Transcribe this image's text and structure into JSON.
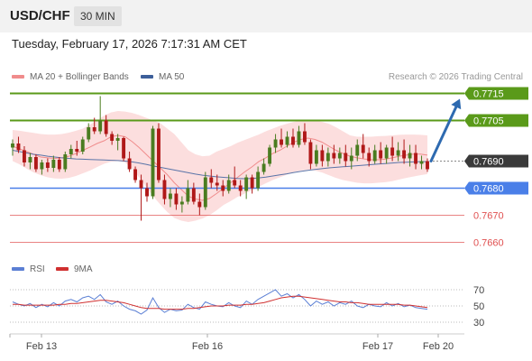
{
  "header": {
    "symbol": "USD/CHF",
    "timeframe": "30 MIN"
  },
  "datetime": "Tuesday, February 17, 2026 7:17:31 AM CET",
  "legend": [
    {
      "label": "MA 20 + Bollinger Bands",
      "color": "#f08c8c"
    },
    {
      "label": "MA 50",
      "color": "#3d5f9a"
    }
  ],
  "credit": "Research © 2026 Trading Central",
  "colors": {
    "green_level": "#5a9a1a",
    "blue_level": "#4a7fe8",
    "red_level": "#e05050",
    "current": "#3a3a3a",
    "arrow": "#2e6ab0",
    "rsi": "#5b7fd4",
    "ma9": "#d03030",
    "bull": "#4a7c20",
    "bear": "#b01818",
    "band": "#fbd8d8"
  },
  "chart_data": [
    {
      "type": "candlestick",
      "y_axis_side": "right",
      "ylim": [
        0.76555,
        0.77175
      ],
      "x_ticks": [
        "Feb 13",
        "Feb 16",
        "Feb 17",
        "Feb 20"
      ],
      "levels": [
        {
          "value": 0.7715,
          "label": "0.7715",
          "style": "green"
        },
        {
          "value": 0.7705,
          "label": "0.7705",
          "style": "green"
        },
        {
          "value": 0.769,
          "label": "0.7690",
          "style": "current"
        },
        {
          "value": 0.768,
          "label": "0.7680",
          "style": "blue"
        },
        {
          "value": 0.767,
          "label": "0.7670",
          "style": "red"
        },
        {
          "value": 0.766,
          "label": "0.7660",
          "style": "red"
        }
      ],
      "forecast_arrow": {
        "from": 0.769,
        "to": 0.7713
      },
      "bollinger": {
        "mid": [
          0.76955,
          0.76945,
          0.76935,
          0.76925,
          0.76915,
          0.76912,
          0.7691,
          0.76912,
          0.76918,
          0.76928,
          0.7694,
          0.76952,
          0.76965,
          0.76975,
          0.7699,
          0.76995,
          0.7699,
          0.76972,
          0.7695,
          0.76925,
          0.769,
          0.76875,
          0.7685,
          0.7682,
          0.76795,
          0.7677,
          0.7676,
          0.76755,
          0.76762,
          0.7678,
          0.768,
          0.7682,
          0.7684,
          0.7686,
          0.76878,
          0.76898,
          0.76912,
          0.76928,
          0.7694,
          0.76955,
          0.7697,
          0.7698,
          0.76985,
          0.7698,
          0.7697,
          0.76955,
          0.7694,
          0.76928,
          0.76918,
          0.76912,
          0.76908,
          0.76905,
          0.76905,
          0.76907,
          0.76912,
          0.76918,
          0.76922,
          0.76926,
          0.76926,
          0.76922
        ],
        "upper": [
          0.77015,
          0.77012,
          0.77008,
          0.77004,
          0.77,
          0.76998,
          0.76998,
          0.77,
          0.77005,
          0.77012,
          0.7702,
          0.77035,
          0.7705,
          0.77068,
          0.7708,
          0.77085,
          0.77083,
          0.77078,
          0.7707,
          0.7706,
          0.7705,
          0.7704,
          0.7702,
          0.77,
          0.7697,
          0.7694,
          0.76925,
          0.76918,
          0.7692,
          0.76935,
          0.76945,
          0.76955,
          0.76968,
          0.76978,
          0.76988,
          0.76998,
          0.7701,
          0.7702,
          0.7703,
          0.77038,
          0.77045,
          0.7705,
          0.77052,
          0.7705,
          0.77045,
          0.77038,
          0.77025,
          0.7701,
          0.76995,
          0.7699,
          0.7699,
          0.7699,
          0.76992,
          0.76993,
          0.76995,
          0.76997,
          0.76998,
          0.76998,
          0.76997,
          0.76995
        ],
        "lower": [
          0.769,
          0.76888,
          0.76872,
          0.76858,
          0.76848,
          0.7684,
          0.76836,
          0.76835,
          0.76838,
          0.76845,
          0.76855,
          0.76865,
          0.76878,
          0.7689,
          0.76898,
          0.769,
          0.76895,
          0.76872,
          0.7684,
          0.76805,
          0.7677,
          0.7674,
          0.76712,
          0.7669,
          0.7668,
          0.76675,
          0.7668,
          0.76688,
          0.767,
          0.76718,
          0.76738,
          0.76752,
          0.76768,
          0.7678,
          0.76792,
          0.76805,
          0.76818,
          0.7683,
          0.7684,
          0.7685,
          0.7686,
          0.76865,
          0.76868,
          0.76865,
          0.76858,
          0.76848,
          0.76838,
          0.7683,
          0.76825,
          0.7682,
          0.76818,
          0.76818,
          0.7682,
          0.76822,
          0.76826,
          0.76832,
          0.76838,
          0.76843,
          0.76848,
          0.76852
        ]
      },
      "ma50": [
        0.7694,
        0.76935,
        0.7693,
        0.76925,
        0.76922,
        0.76918,
        0.76915,
        0.76912,
        0.7691,
        0.76908,
        0.76907,
        0.76906,
        0.76905,
        0.76904,
        0.76903,
        0.76902,
        0.769,
        0.76897,
        0.76893,
        0.76888,
        0.76882,
        0.76877,
        0.76872,
        0.76867,
        0.76862,
        0.76857,
        0.76852,
        0.76848,
        0.76845,
        0.76842,
        0.7684,
        0.76838,
        0.76836,
        0.76835,
        0.76836,
        0.76838,
        0.76841,
        0.76845,
        0.76849,
        0.76853,
        0.76858,
        0.76862,
        0.76866,
        0.76869,
        0.76872,
        0.76875,
        0.76877,
        0.76879,
        0.76881,
        0.76883,
        0.76885,
        0.76887,
        0.76889,
        0.76891,
        0.76893,
        0.76895,
        0.76896,
        0.76897,
        0.76898,
        0.76898
      ],
      "ohlc": [
        [
          0.7695,
          0.7698,
          0.7692,
          0.76965
        ],
        [
          0.76965,
          0.7699,
          0.7693,
          0.7694
        ],
        [
          0.7694,
          0.76955,
          0.7688,
          0.76895
        ],
        [
          0.76895,
          0.7693,
          0.7687,
          0.76915
        ],
        [
          0.76915,
          0.76925,
          0.7686,
          0.7687
        ],
        [
          0.7687,
          0.76905,
          0.7685,
          0.76895
        ],
        [
          0.76895,
          0.7691,
          0.7686,
          0.76875
        ],
        [
          0.76875,
          0.7692,
          0.7686,
          0.76905
        ],
        [
          0.76905,
          0.76915,
          0.7686,
          0.7687
        ],
        [
          0.7687,
          0.76935,
          0.7686,
          0.76925
        ],
        [
          0.76925,
          0.7696,
          0.7691,
          0.76945
        ],
        [
          0.76945,
          0.76975,
          0.7692,
          0.76935
        ],
        [
          0.76935,
          0.7699,
          0.76925,
          0.7698
        ],
        [
          0.7698,
          0.7704,
          0.7697,
          0.77025
        ],
        [
          0.77025,
          0.7706,
          0.77,
          0.7701
        ],
        [
          0.7701,
          0.7714,
          0.77,
          0.7705
        ],
        [
          0.7705,
          0.7707,
          0.7699,
          0.77
        ],
        [
          0.77,
          0.7701,
          0.7696,
          0.76975
        ],
        [
          0.76975,
          0.77,
          0.7694,
          0.76985
        ],
        [
          0.76985,
          0.7699,
          0.769,
          0.7691
        ],
        [
          0.7691,
          0.76935,
          0.7686,
          0.7687
        ],
        [
          0.7687,
          0.7688,
          0.7682,
          0.7683
        ],
        [
          0.7683,
          0.7685,
          0.7668,
          0.768
        ],
        [
          0.768,
          0.7682,
          0.7675,
          0.7677
        ],
        [
          0.7677,
          0.7703,
          0.7676,
          0.7702
        ],
        [
          0.7702,
          0.7704,
          0.7682,
          0.7683
        ],
        [
          0.7683,
          0.7685,
          0.7674,
          0.7676
        ],
        [
          0.7676,
          0.768,
          0.7673,
          0.7678
        ],
        [
          0.7678,
          0.768,
          0.7672,
          0.7674
        ],
        [
          0.7674,
          0.7677,
          0.7671,
          0.7675
        ],
        [
          0.7675,
          0.7683,
          0.7674,
          0.768
        ],
        [
          0.768,
          0.7682,
          0.7674,
          0.7675
        ],
        [
          0.7675,
          0.7678,
          0.767,
          0.7673
        ],
        [
          0.7673,
          0.7686,
          0.7672,
          0.7684
        ],
        [
          0.7684,
          0.7687,
          0.768,
          0.7682
        ],
        [
          0.7682,
          0.7685,
          0.7679,
          0.7681
        ],
        [
          0.7681,
          0.7683,
          0.7677,
          0.7679
        ],
        [
          0.7679,
          0.7685,
          0.7678,
          0.7683
        ],
        [
          0.7683,
          0.7688,
          0.768,
          0.7681
        ],
        [
          0.7681,
          0.7683,
          0.7677,
          0.7679
        ],
        [
          0.7679,
          0.7685,
          0.7676,
          0.7684
        ],
        [
          0.7684,
          0.7685,
          0.7678,
          0.768
        ],
        [
          0.768,
          0.7688,
          0.7679,
          0.7686
        ],
        [
          0.7686,
          0.7691,
          0.7685,
          0.7689
        ],
        [
          0.7689,
          0.7696,
          0.7688,
          0.7695
        ],
        [
          0.7695,
          0.77,
          0.7693,
          0.7698
        ],
        [
          0.7698,
          0.7702,
          0.7695,
          0.7696
        ],
        [
          0.7696,
          0.7701,
          0.7695,
          0.7699
        ],
        [
          0.7699,
          0.7702,
          0.7695,
          0.7696
        ],
        [
          0.7696,
          0.7703,
          0.7695,
          0.7701
        ],
        [
          0.7701,
          0.7704,
          0.7696,
          0.7697
        ],
        [
          0.7697,
          0.7698,
          0.7687,
          0.7689
        ],
        [
          0.7689,
          0.7696,
          0.7688,
          0.7694
        ],
        [
          0.7694,
          0.7696,
          0.7688,
          0.769
        ],
        [
          0.769,
          0.7695,
          0.7688,
          0.7693
        ],
        [
          0.7693,
          0.7696,
          0.7689,
          0.7691
        ],
        [
          0.7691,
          0.7695,
          0.7689,
          0.7693
        ],
        [
          0.7693,
          0.7696,
          0.7688,
          0.769
        ],
        [
          0.769,
          0.7695,
          0.7687,
          0.7692
        ],
        [
          0.7692,
          0.7698,
          0.769,
          0.7696
        ],
        [
          0.7696,
          0.77,
          0.7691,
          0.7693
        ],
        [
          0.7693,
          0.7695,
          0.7688,
          0.769
        ],
        [
          0.769,
          0.7696,
          0.7689,
          0.7694
        ],
        [
          0.7694,
          0.7697,
          0.7689,
          0.7691
        ],
        [
          0.7691,
          0.7696,
          0.7689,
          0.7695
        ],
        [
          0.7695,
          0.7699,
          0.769,
          0.7692
        ],
        [
          0.7692,
          0.7697,
          0.769,
          0.7694
        ],
        [
          0.7694,
          0.7698,
          0.7689,
          0.7691
        ],
        [
          0.7691,
          0.7696,
          0.7688,
          0.7693
        ],
        [
          0.7693,
          0.7696,
          0.7687,
          0.7689
        ],
        [
          0.7689,
          0.7692,
          0.7687,
          0.769
        ],
        [
          0.769,
          0.7691,
          0.7686,
          0.7687
        ]
      ]
    },
    {
      "type": "line",
      "yticks": [
        30,
        50,
        70
      ],
      "ylim": [
        20,
        80
      ],
      "series": [
        {
          "name": "RSI",
          "values": [
            55,
            52,
            50,
            53,
            48,
            52,
            49,
            54,
            50,
            56,
            58,
            55,
            60,
            62,
            58,
            64,
            55,
            52,
            56,
            50,
            46,
            44,
            40,
            45,
            60,
            48,
            42,
            46,
            44,
            45,
            52,
            48,
            46,
            55,
            52,
            50,
            49,
            54,
            50,
            48,
            56,
            52,
            58,
            62,
            66,
            70,
            62,
            65,
            60,
            64,
            58,
            50,
            56,
            52,
            55,
            50,
            54,
            52,
            56,
            50,
            48,
            52,
            50,
            49,
            54,
            50,
            53,
            49,
            51,
            48,
            47,
            46
          ]
        },
        {
          "name": "9MA",
          "values": [
            52,
            52,
            51,
            51,
            51,
            51,
            51,
            51,
            52,
            52,
            53,
            53,
            54,
            55,
            56,
            57,
            57,
            56,
            55,
            54,
            52,
            50,
            48,
            47,
            47,
            47,
            46,
            46,
            46,
            46,
            47,
            47,
            48,
            49,
            50,
            50,
            50,
            51,
            51,
            51,
            52,
            52,
            53,
            54,
            56,
            58,
            60,
            61,
            62,
            62,
            61,
            60,
            59,
            58,
            57,
            56,
            55,
            55,
            54,
            54,
            53,
            52,
            52,
            52,
            52,
            52,
            52,
            51,
            51,
            50,
            49,
            48
          ]
        }
      ]
    }
  ]
}
